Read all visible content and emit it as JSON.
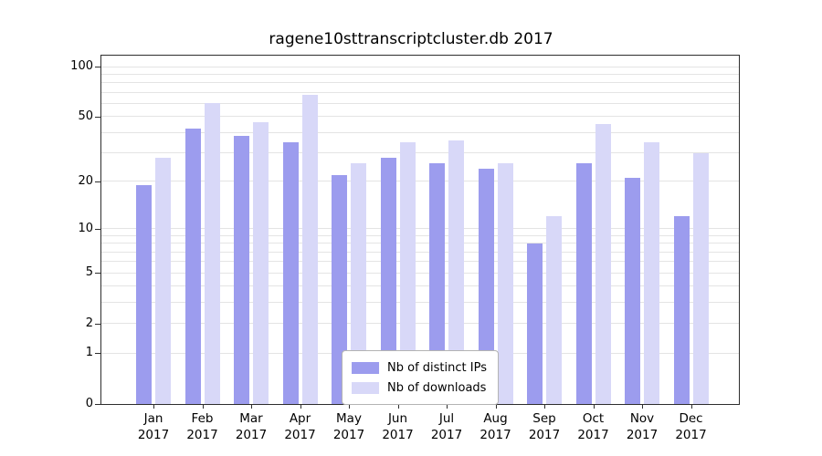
{
  "chart_data": {
    "type": "bar",
    "title": "ragene10sttranscriptcluster.db 2017",
    "categories": [
      "Jan",
      "Feb",
      "Mar",
      "Apr",
      "May",
      "Jun",
      "Jul",
      "Aug",
      "Sep",
      "Oct",
      "Nov",
      "Dec"
    ],
    "category_year": "2017",
    "series": [
      {
        "name": "Nb of distinct IPs",
        "color": "#9c9cee",
        "values": [
          19,
          42,
          38,
          35,
          22,
          28,
          26,
          24,
          8,
          26,
          21,
          12
        ]
      },
      {
        "name": "Nb of downloads",
        "color": "#d8d8f8",
        "values": [
          28,
          60,
          46,
          68,
          26,
          35,
          36,
          26,
          12,
          45,
          35,
          30
        ]
      }
    ],
    "yscale": "log1p",
    "ylim": [
      0,
      100
    ],
    "yticks": [
      0,
      1,
      2,
      5,
      10,
      20,
      50,
      100
    ],
    "minor_gridlines": [
      1,
      2,
      3,
      4,
      5,
      6,
      7,
      8,
      9,
      10,
      20,
      30,
      40,
      50,
      60,
      70,
      80,
      90,
      100
    ],
    "grid": true,
    "legend_position": "bottom-center"
  }
}
